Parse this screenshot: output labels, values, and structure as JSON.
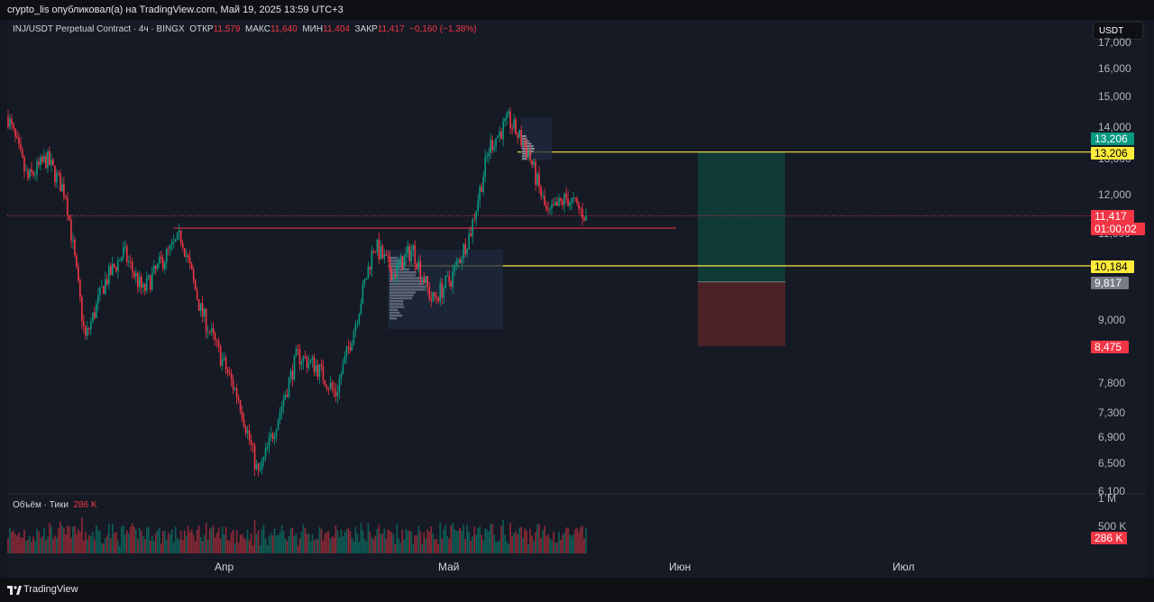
{
  "header": {
    "publish_line": "crypto_lis опубликовал(а) на TradingView.com, Май 19, 2025 13:59 UTC+3"
  },
  "legend": {
    "symbol": "INJ/USDT Perpetual Contract · 4ч · BINGX",
    "open_label": "ОТКР",
    "open": "11,579",
    "high_label": "МАКС",
    "high": "11,640",
    "low_label": "МИН",
    "low": "11,404",
    "close_label": "ЗАКР",
    "close": "11,417",
    "change": "−0,160 (−1,38%)"
  },
  "currency_button": "USDT",
  "price_axis": {
    "ticks": [
      "17,000",
      "16,000",
      "15,000",
      "14,000",
      "13,000",
      "12,000",
      "11,000",
      "9,000",
      "7,800",
      "7,300",
      "6,900",
      "6,500",
      "6,100"
    ],
    "tags": [
      {
        "name": "target-price-tag",
        "text": "13,206",
        "bg": "#089981",
        "fg": "#ffffff"
      },
      {
        "name": "level-high-tag",
        "text": "13,206",
        "bg": "#ffeb3b",
        "fg": "#000000"
      },
      {
        "name": "last-price-tag",
        "text": "11,417",
        "bg": "#f23645",
        "fg": "#ffffff"
      },
      {
        "name": "countdown-tag",
        "text": "01:00:02",
        "bg": "#f23645",
        "fg": "#ffffff"
      },
      {
        "name": "level-low-tag",
        "text": "10,184",
        "bg": "#ffeb3b",
        "fg": "#000000"
      },
      {
        "name": "entry-price-tag",
        "text": "9,817",
        "bg": "#787b86",
        "fg": "#ffffff"
      },
      {
        "name": "stop-price-tag",
        "text": "8,475",
        "bg": "#f23645",
        "fg": "#ffffff"
      }
    ]
  },
  "volume": {
    "legend_label": "Объём · Тики",
    "legend_value": "286 K",
    "axis_ticks": [
      "1 M",
      "500 K"
    ],
    "last_tag": "286 K"
  },
  "time_axis": [
    "Апр",
    "Май",
    "Июн",
    "Июл"
  ],
  "footer": {
    "brand": "TradingView"
  },
  "colors": {
    "up": "#089981",
    "down": "#f23645",
    "level": "#ffeb3b",
    "target_zone": "#0f3a37",
    "stop_zone": "#4a2228"
  },
  "chart_data": {
    "type": "candlestick",
    "symbol": "INJ/USDT",
    "timeframe": "4ч",
    "y_scale": "log",
    "ylim": [
      6100,
      17000
    ],
    "x_labels": [
      "Апр",
      "Май",
      "Июн",
      "Июл"
    ],
    "path_points": [
      [
        14300,
        "start"
      ],
      [
        12400,
        ""
      ],
      [
        13000,
        ""
      ],
      [
        12000,
        ""
      ],
      [
        8600,
        ""
      ],
      [
        9800,
        ""
      ],
      [
        10500,
        ""
      ],
      [
        9600,
        ""
      ],
      [
        10300,
        ""
      ],
      [
        10900,
        ""
      ],
      [
        9200,
        ""
      ],
      [
        8300,
        ""
      ],
      [
        7500,
        ""
      ],
      [
        6300,
        ""
      ],
      [
        7200,
        ""
      ],
      [
        8300,
        ""
      ],
      [
        8100,
        ""
      ],
      [
        7600,
        ""
      ],
      [
        8900,
        ""
      ],
      [
        10700,
        ""
      ],
      [
        10000,
        ""
      ],
      [
        10600,
        ""
      ],
      [
        9400,
        ""
      ],
      [
        9900,
        ""
      ],
      [
        11000,
        ""
      ],
      [
        13400,
        ""
      ],
      [
        14200,
        ""
      ],
      [
        13200,
        ""
      ],
      [
        11400,
        ""
      ],
      [
        11900,
        ""
      ],
      [
        11417,
        "last"
      ]
    ],
    "horizontal_levels": [
      13206,
      11417,
      10184
    ],
    "resistance_line": 11100,
    "position": {
      "entry": 9817,
      "target": 13206,
      "stop": 8475
    }
  }
}
